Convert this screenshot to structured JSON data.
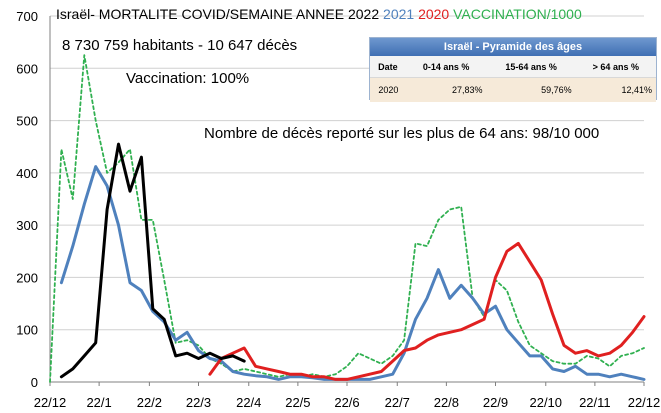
{
  "title": {
    "prefix": "Israël- MORTALITE COVID/SEMAINE  ANNEE 2022",
    "y2021": "2021",
    "y2020": "2020",
    "vacc": "VACCINATION/1000",
    "colors": {
      "prefix": "#000000",
      "y2021": "#4f81bd",
      "y2020": "#e02020",
      "vacc": "#30b050"
    }
  },
  "annotations": {
    "population": "8 730 759 habitants - 10 647 décès",
    "vaccination": "Vaccination: 100%",
    "over64": "Nombre de décès reporté sur les plus de 64 ans: 98/10 000"
  },
  "pyramid": {
    "title": "Israël - Pyramide des âges",
    "headers": [
      "Date",
      "0-14 ans %",
      "15-64 ans %",
      "> 64 ans %"
    ],
    "row": [
      "2020",
      "27,83%",
      "59,76%",
      "12,41%"
    ]
  },
  "chart_data": {
    "type": "line",
    "ylim": [
      0,
      700
    ],
    "yticks": [
      0,
      100,
      200,
      300,
      400,
      500,
      600,
      700
    ],
    "xlim": [
      0,
      52
    ],
    "xtick_labels": [
      "22/12",
      "22/1",
      "22/2",
      "22/3",
      "22/4",
      "22/5",
      "22/6",
      "22/7",
      "22/8",
      "22/9",
      "22/10",
      "22/11",
      "22/12"
    ],
    "xtick_weeks": [
      0,
      4.3,
      8.7,
      13,
      17.4,
      21.7,
      26,
      30.4,
      34.7,
      39,
      43.4,
      47.7,
      52
    ],
    "series": [
      {
        "name": "2022",
        "color": "#000000",
        "width": 3,
        "dash": "",
        "x": [
          1,
          2,
          3,
          4,
          5,
          6,
          7,
          8,
          9,
          10,
          11,
          12,
          13,
          14,
          15,
          16,
          17
        ],
        "y": [
          10,
          25,
          50,
          75,
          330,
          455,
          365,
          430,
          140,
          120,
          50,
          55,
          45,
          55,
          45,
          50,
          40
        ]
      },
      {
        "name": "2021",
        "color": "#4f81bd",
        "width": 3,
        "dash": "",
        "x": [
          1,
          2,
          3,
          4,
          5,
          6,
          7,
          8,
          9,
          10,
          11,
          12,
          13,
          14,
          15,
          16,
          17,
          18,
          19,
          20,
          21,
          22,
          23,
          24,
          25,
          26,
          27,
          28,
          29,
          30,
          31,
          32,
          33,
          34,
          35,
          36,
          37,
          38,
          39,
          40,
          41,
          42,
          43,
          44,
          45,
          46,
          47,
          48,
          49,
          50,
          51,
          52
        ],
        "y": [
          190,
          260,
          340,
          412,
          375,
          300,
          190,
          175,
          135,
          115,
          80,
          95,
          60,
          45,
          40,
          20,
          15,
          12,
          10,
          5,
          10,
          10,
          8,
          5,
          5,
          5,
          5,
          5,
          10,
          15,
          55,
          120,
          160,
          215,
          160,
          185,
          160,
          130,
          145,
          100,
          75,
          50,
          50,
          25,
          20,
          30,
          15,
          15,
          10,
          15,
          10,
          5
        ]
      },
      {
        "name": "2020",
        "color": "#e02020",
        "width": 3,
        "dash": "",
        "x": [
          14,
          15,
          16,
          17,
          18,
          19,
          20,
          21,
          22,
          23,
          24,
          25,
          26,
          27,
          28,
          29,
          30,
          31,
          32,
          33,
          34,
          35,
          36,
          37,
          38,
          39,
          40,
          41,
          42,
          43,
          44,
          45,
          46,
          47,
          48,
          49,
          50,
          51,
          52
        ],
        "y": [
          15,
          45,
          55,
          65,
          30,
          25,
          20,
          15,
          15,
          10,
          10,
          5,
          5,
          10,
          15,
          20,
          40,
          60,
          65,
          80,
          90,
          95,
          100,
          110,
          120,
          200,
          250,
          265,
          230,
          195,
          130,
          70,
          55,
          60,
          50,
          55,
          70,
          95,
          125
        ]
      },
      {
        "name": "Vaccination/1000",
        "color": "#30b050",
        "width": 1.8,
        "dash": "3 3",
        "x": [
          0,
          1,
          2,
          3,
          4,
          5,
          6,
          7,
          8,
          9,
          10,
          11,
          12,
          13,
          14,
          15,
          16,
          17,
          18,
          19,
          20,
          21,
          22,
          23,
          24,
          25,
          26,
          27,
          28,
          29,
          30,
          31,
          32,
          33,
          34,
          35,
          36,
          37,
          38,
          39,
          40,
          41,
          42,
          43,
          44,
          45,
          46,
          47,
          48,
          49,
          50,
          51,
          52
        ],
        "y": [
          0,
          445,
          350,
          625,
          500,
          400,
          420,
          445,
          310,
          310,
          195,
          75,
          80,
          70,
          45,
          35,
          20,
          25,
          20,
          15,
          10,
          15,
          10,
          15,
          10,
          15,
          30,
          55,
          45,
          35,
          50,
          80,
          265,
          260,
          310,
          330,
          335,
          160,
          125,
          195,
          175,
          115,
          70,
          55,
          40,
          35,
          35,
          50,
          45,
          30,
          50,
          55,
          65
        ]
      }
    ]
  }
}
